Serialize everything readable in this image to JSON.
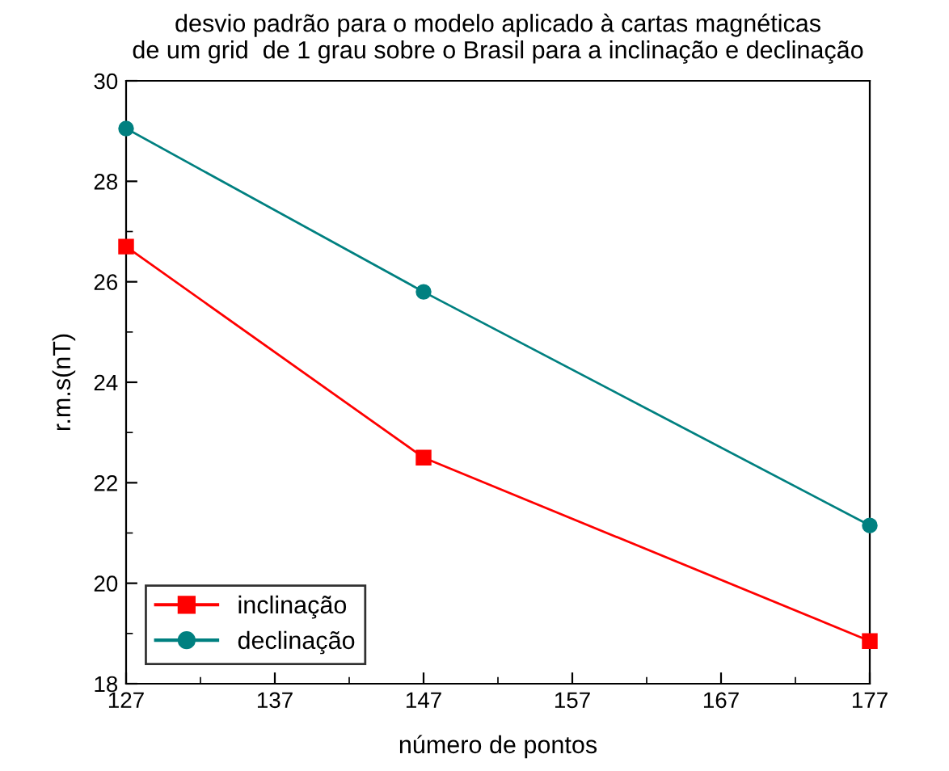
{
  "chart_data": {
    "type": "line",
    "title": "desvio padrão para o modelo aplicado à cartas magnéticas\nde um grid  de 1 grau sobre o Brasil para a inclinação e declinação",
    "xlabel": "número de pontos",
    "ylabel": "r.m.s(nT)",
    "x": [
      127,
      147,
      177
    ],
    "series": [
      {
        "name": "inclinação",
        "color": "#ff0000",
        "values": [
          26.7,
          22.5,
          18.85
        ],
        "marker": "square"
      },
      {
        "name": "declinação",
        "color": "#008080",
        "values": [
          29.05,
          25.8,
          21.15
        ],
        "marker": "circle"
      }
    ],
    "xlim": [
      127,
      177
    ],
    "xticks": [
      127,
      137,
      147,
      157,
      167,
      177
    ],
    "ylim": [
      18,
      30
    ],
    "yticks": [
      18,
      20,
      22,
      24,
      26,
      28,
      30
    ],
    "grid": false,
    "legend": "bottom left",
    "line_style": "solid"
  }
}
